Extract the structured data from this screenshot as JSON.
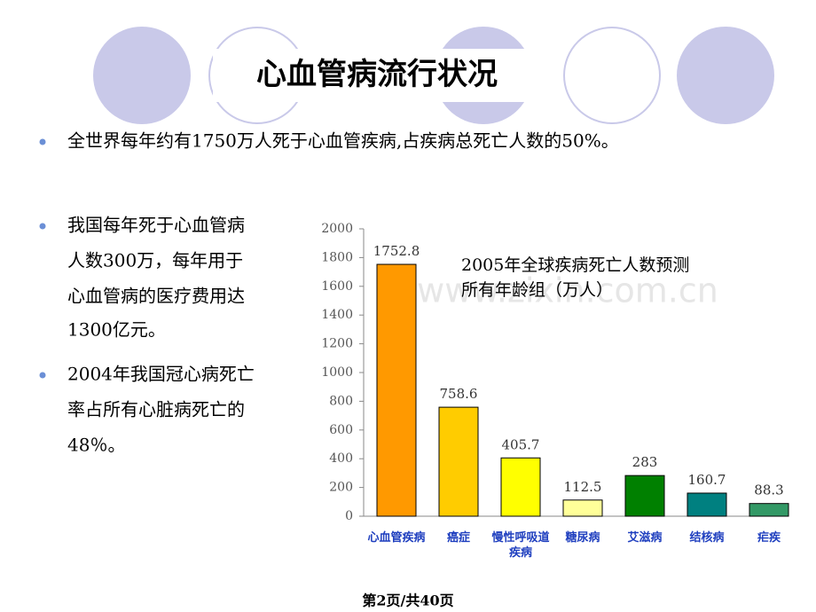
{
  "title": "心血管病流行状况",
  "bullets": [
    {
      "lines": [
        "全世界每年约有1750万人死于心血管疾病,占疾病总死亡人数的50%。"
      ]
    },
    {
      "lines": [
        "我国每年死于心血管病",
        "人数300万，每年用于",
        "心血管病的医疗费用达",
        "1300亿元。"
      ]
    },
    {
      "lines": [
        "2004年我国冠心病死亡",
        "率占所有心脏病死亡的",
        "48％。"
      ]
    }
  ],
  "watermark": "www.zixin.com.cn",
  "footer": "第2页/共40页",
  "chart_data": {
    "type": "bar",
    "title": [
      "2005年全球疾病死亡人数预测",
      "所有年龄组（万人）"
    ],
    "categories": [
      "心血管疾病",
      "癌症",
      "慢性呼吸道疾病",
      "糖尿病",
      "艾滋病",
      "结核病",
      "疟疾"
    ],
    "values": [
      1752.8,
      758.6,
      405.7,
      112.5,
      283,
      160.7,
      88.3
    ],
    "colors": [
      "#ff9900",
      "#ffcc00",
      "#ffff00",
      "#ffff99",
      "#008000",
      "#008080",
      "#339966"
    ],
    "ylim": [
      0,
      2000
    ],
    "yticks": [
      0,
      200,
      400,
      600,
      800,
      1000,
      1200,
      1400,
      1600,
      1800,
      2000
    ]
  }
}
